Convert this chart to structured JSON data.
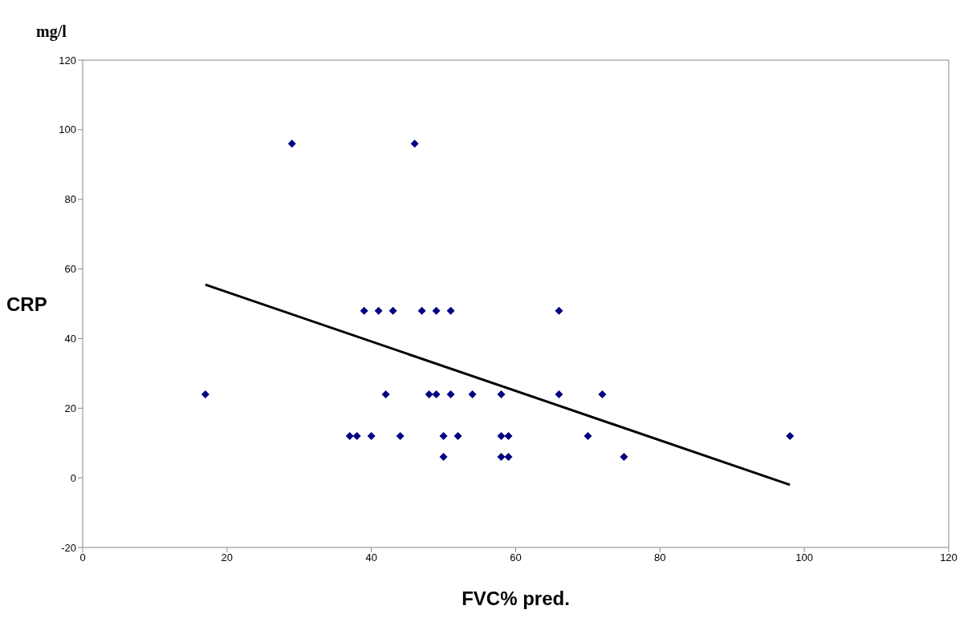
{
  "chart_data": {
    "type": "scatter",
    "xlabel": "FVC% pred.",
    "ylabel": "CRP",
    "annotations": [
      "mg/l"
    ],
    "xlim": [
      0,
      120
    ],
    "xticks": [
      0,
      20,
      40,
      60,
      80,
      100,
      120
    ],
    "ylim": [
      -20,
      120
    ],
    "yticks": [
      -20,
      0,
      20,
      40,
      60,
      80,
      100,
      120
    ],
    "marker": "diamond",
    "series": [
      {
        "color": "#000080",
        "x": [
          39,
          41,
          43,
          47,
          49,
          51,
          66,
          17,
          42,
          48,
          49,
          51,
          54,
          58,
          66,
          72,
          37,
          38,
          40,
          44,
          50,
          52,
          58,
          59,
          70,
          98,
          50,
          58,
          59,
          75,
          29,
          46
        ],
        "values": [
          48,
          48,
          48,
          48,
          48,
          48,
          48,
          24,
          24,
          24,
          24,
          24,
          24,
          24,
          24,
          24,
          12,
          12,
          12,
          12,
          12,
          12,
          12,
          12,
          12,
          12,
          6,
          6,
          6,
          6,
          96,
          96
        ]
      },
      {
        "type": "line",
        "color": "#000000",
        "x": [
          17,
          98
        ],
        "values": [
          55.5,
          -2
        ],
        "marker": "none",
        "line_style": "solid"
      }
    ]
  }
}
